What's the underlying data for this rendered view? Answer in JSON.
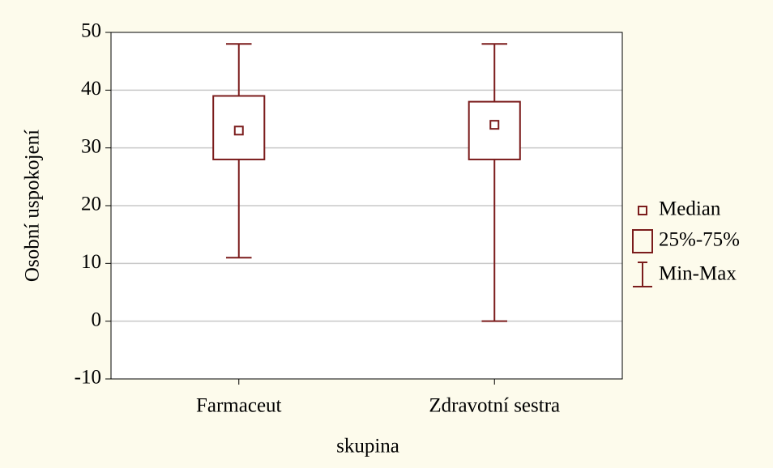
{
  "chart_data": {
    "type": "box",
    "xlabel": "skupina",
    "ylabel": "Osobní uspokojení",
    "categories": [
      "Farmaceut",
      "Zdravotní sestra"
    ],
    "min": [
      11,
      0
    ],
    "q1": [
      28,
      28
    ],
    "median": [
      33,
      34
    ],
    "q3": [
      39,
      38
    ],
    "max": [
      48,
      48
    ],
    "color": "#7b1c1c",
    "ylim": [
      -10,
      50
    ],
    "yticks": [
      -10,
      0,
      10,
      20,
      30,
      40,
      50
    ],
    "grid": true,
    "legend": [
      "Median",
      "25%-75%",
      "Min-Max"
    ],
    "legend_position": "right"
  }
}
